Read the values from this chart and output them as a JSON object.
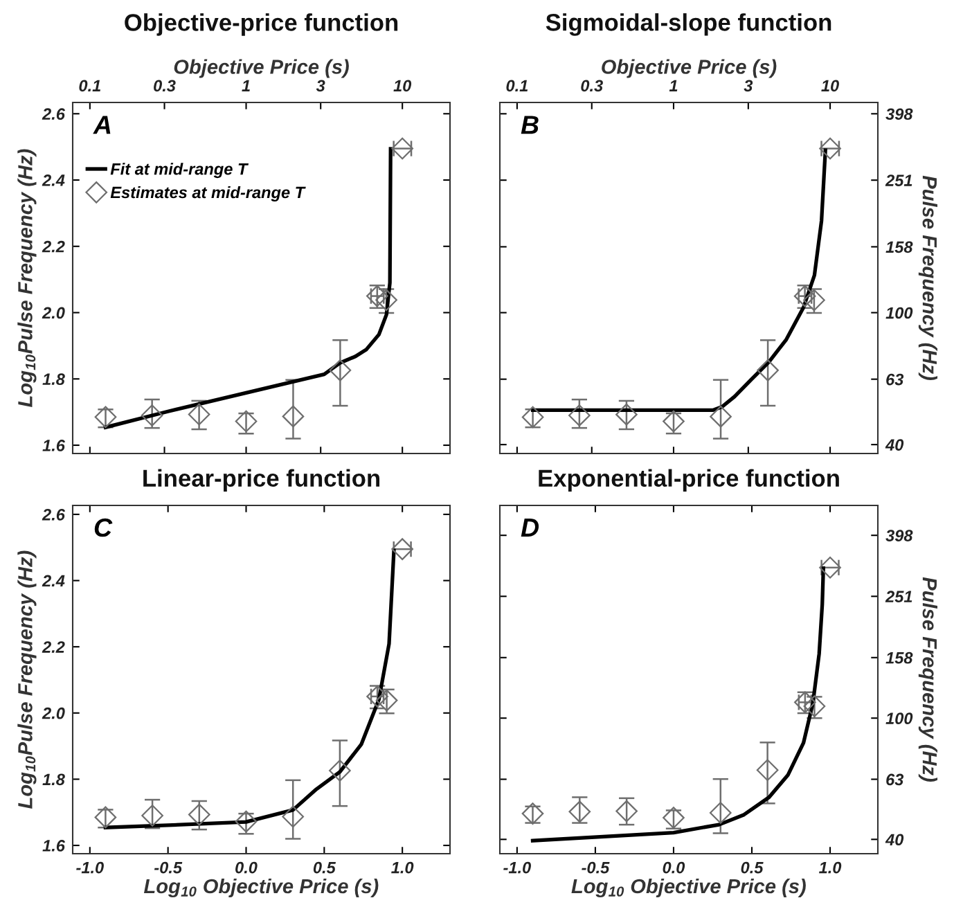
{
  "chart_data": [
    {
      "type": "scatter",
      "title": "Objective-price function",
      "xlabel": "Objective Price (s)",
      "ylabel": "Log$_{10}$Pulse Frequency (Hz)",
      "annotations": [
        "A"
      ],
      "log": "x",
      "xlim": [
        0.0776,
        20.18
      ],
      "xticks": [
        0.1,
        0.3,
        1,
        3,
        10
      ],
      "ylim": [
        1.575,
        2.634
      ],
      "yticks": [
        1.6,
        1.8,
        {
          "value": 2,
          "label": "2.0"
        },
        2.2,
        2.4,
        2.6
      ],
      "legend": "top left",
      "series": [
        {
          "name": "Fit at mid-range T",
          "type": "line",
          "color": "#000000",
          "x": [
            0.126,
            0.316,
            1,
            3.16,
            3.98,
            5.01,
            5.89,
            7.08,
            7.91,
            8.32,
            8.41
          ],
          "values": [
            1.654,
            1.702,
            1.758,
            1.814,
            1.848,
            1.868,
            1.889,
            1.934,
            1.994,
            2.09,
            2.494
          ]
        },
        {
          "name": "Estimates at mid-range T",
          "color": "#6e6e6e",
          "marker": "diamond",
          "x": [
            0.126,
            0.25,
            0.5,
            1,
            2,
            4,
            6.9,
            7.9,
            10
          ],
          "values": [
            1.685,
            1.69,
            1.693,
            1.672,
            1.687,
            1.826,
            2.05,
            2.038,
            2.495
          ],
          "errors": [
            [
              1.654,
              1.708
            ],
            [
              1.652,
              1.738
            ],
            [
              1.648,
              1.734
            ],
            [
              1.635,
              1.696
            ],
            [
              1.62,
              1.797
            ],
            [
              1.719,
              1.917
            ],
            [
              2.014,
              2.082
            ],
            [
              1.999,
              2.071
            ],
            null
          ],
          "xerrors": [
            null,
            null,
            null,
            null,
            null,
            null,
            [
              6.3,
              7.6
            ],
            null,
            [
              8.8,
              11.4
            ]
          ]
        }
      ]
    },
    {
      "type": "scatter",
      "title": "Sigmoidal-slope function",
      "xlabel": "Objective Price (s)",
      "ylabel": "Pulse Frequency (Hz)",
      "annotations": [
        "B"
      ],
      "log": "xy",
      "xlim": [
        0.0776,
        20.18
      ],
      "xticks": [
        0.1,
        0.3,
        1,
        3,
        10
      ],
      "ylim": [
        37.6,
        430.5
      ],
      "yticks": [
        40,
        63,
        100,
        158,
        251,
        398
      ],
      "series": [
        {
          "type": "line",
          "color": "#000000",
          "x": [
            0.126,
            1.78,
            2.04,
            2.45,
            3.16,
            4.07,
            5.25,
            6.76,
            7.94,
            8.81,
            9.33
          ],
          "values": [
            50.8,
            50.8,
            52.0,
            55.8,
            63.1,
            71.1,
            83.0,
            103.7,
            129.7,
            189.2,
            309.0
          ]
        },
        {
          "color": "#6e6e6e",
          "marker": "diamond",
          "x": [
            0.126,
            0.25,
            0.5,
            1,
            2,
            4,
            6.9,
            7.9,
            10
          ],
          "values": [
            48.4,
            49.0,
            49.3,
            47.0,
            48.6,
            67.0,
            112.2,
            109.1,
            312.6
          ],
          "errors": [
            [
              45.1,
              51.1
            ],
            [
              44.9,
              54.7
            ],
            [
              44.5,
              54.2
            ],
            [
              43.2,
              49.7
            ],
            [
              41.7,
              62.7
            ],
            [
              52.4,
              82.6
            ],
            [
              103.3,
              120.8
            ],
            [
              99.8,
              117.8
            ],
            null
          ],
          "xerrors": [
            null,
            null,
            null,
            null,
            null,
            null,
            [
              6.3,
              7.6
            ],
            null,
            [
              8.8,
              11.4
            ]
          ]
        }
      ]
    },
    {
      "type": "scatter",
      "title": "Linear-price function",
      "xlabel": "Log$_{10}$ Objective Price (s)",
      "ylabel": "Log$_{10}$Pulse Frequency (Hz)",
      "annotations": [
        "C"
      ],
      "xlim": [
        -1.11,
        1.305
      ],
      "xticks": [
        {
          "value": -1,
          "label": "-1.0"
        },
        -0.5,
        {
          "value": 0,
          "label": "0.0"
        },
        0.5,
        {
          "value": 1,
          "label": "1.0"
        }
      ],
      "ylim": [
        1.575,
        2.627
      ],
      "yticks": [
        1.6,
        1.8,
        {
          "value": 2,
          "label": "2.0"
        },
        2.2,
        2.4,
        2.6
      ],
      "series": [
        {
          "type": "line",
          "color": "#000000",
          "x": [
            -0.9,
            -0.5,
            0,
            0.3,
            0.45,
            0.6,
            0.737,
            0.85,
            0.915,
            0.946
          ],
          "values": [
            1.654,
            1.661,
            1.671,
            1.707,
            1.77,
            1.822,
            1.905,
            2.041,
            2.209,
            2.491
          ]
        },
        {
          "color": "#6e6e6e",
          "marker": "diamond",
          "x": [
            -0.9,
            -0.6,
            -0.3,
            0,
            0.3,
            0.6,
            0.84,
            0.9,
            1.0
          ],
          "values": [
            1.685,
            1.69,
            1.693,
            1.672,
            1.687,
            1.826,
            2.05,
            2.038,
            2.495
          ],
          "errors": [
            [
              1.654,
              1.708
            ],
            [
              1.652,
              1.738
            ],
            [
              1.648,
              1.734
            ],
            [
              1.635,
              1.696
            ],
            [
              1.62,
              1.797
            ],
            [
              1.719,
              1.917
            ],
            [
              2.014,
              2.082
            ],
            [
              1.999,
              2.071
            ],
            null
          ],
          "xerrors": [
            null,
            null,
            null,
            null,
            null,
            null,
            0.04,
            null,
            0.055
          ]
        }
      ]
    },
    {
      "type": "scatter",
      "title": "Exponential-price function",
      "xlabel": "Log$_{10}$ Objective Price (s)",
      "ylabel": "Pulse Frequency (Hz)",
      "annotations": [
        "D"
      ],
      "log": "y",
      "xlim": [
        -1.11,
        1.305
      ],
      "xticks": [
        {
          "value": -1,
          "label": "-1.0"
        },
        -0.5,
        {
          "value": 0,
          "label": "0.0"
        },
        0.5,
        {
          "value": 1,
          "label": "1.0"
        }
      ],
      "ylim": [
        35.9,
        498.9
      ],
      "yticks": [
        40,
        63,
        100,
        158,
        251,
        398
      ],
      "series": [
        {
          "type": "line",
          "color": "#000000",
          "x": [
            -0.9,
            0,
            0.29,
            0.45,
            0.61,
            0.73,
            0.83,
            0.89,
            0.93,
            0.95,
            0.957
          ],
          "values": [
            39.6,
            42.1,
            44.7,
            48.2,
            55.0,
            65.0,
            83.0,
            111.9,
            162.6,
            236.6,
            310.5
          ]
        },
        {
          "color": "#6e6e6e",
          "marker": "diamond",
          "x": [
            -0.9,
            -0.6,
            -0.3,
            0,
            0.3,
            0.6,
            0.84,
            0.9,
            1.0
          ],
          "values": [
            48.6,
            49.3,
            49.5,
            47.1,
            48.9,
            67.5,
            112.7,
            109.4,
            311.9
          ],
          "errors": [
            [
              45.3,
              51.3
            ],
            [
              45.3,
              55.0
            ],
            [
              44.7,
              54.6
            ],
            [
              43.4,
              49.8
            ],
            [
              41.9,
              63.1
            ],
            [
              52.5,
              83.2
            ],
            [
              103.8,
              121.6
            ],
            [
              100,
              117.5
            ],
            null
          ],
          "xerrors": [
            null,
            null,
            null,
            null,
            null,
            null,
            0.04,
            null,
            0.055
          ]
        }
      ]
    }
  ]
}
